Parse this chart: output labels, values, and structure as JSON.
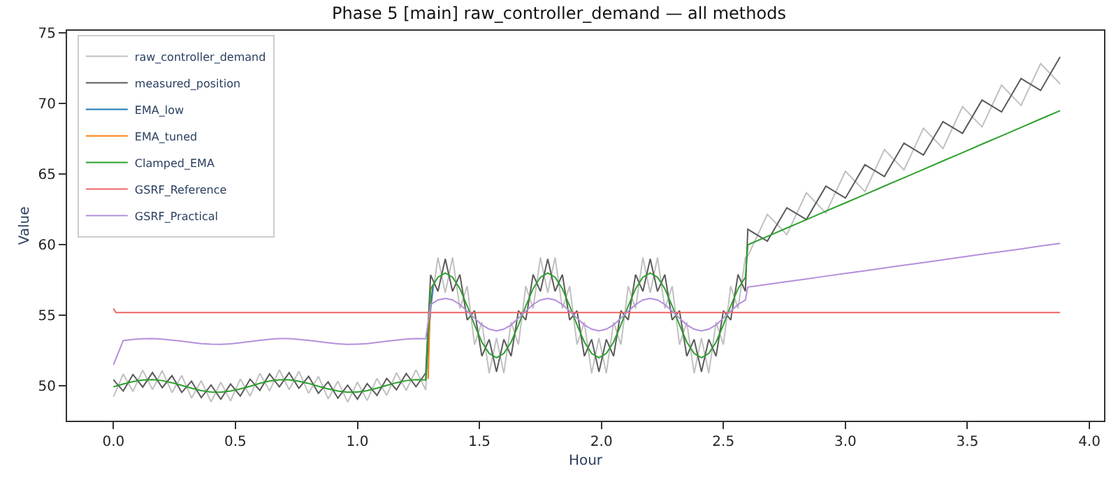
{
  "chart_data": {
    "type": "line",
    "title": "Phase 5 [main] raw_controller_demand — all methods",
    "xlabel": "Hour",
    "ylabel": "Value",
    "x": [
      0,
      0.04,
      0.08,
      0.12,
      0.16,
      0.2,
      0.24,
      0.28,
      0.32,
      0.36,
      0.4,
      0.44,
      0.48,
      0.52,
      0.56,
      0.6,
      0.64,
      0.68,
      0.72,
      0.76,
      0.8,
      0.84,
      0.88,
      0.92,
      0.96,
      1.0,
      1.04,
      1.08,
      1.12,
      1.16,
      1.2,
      1.24,
      1.28,
      1.3,
      1.33,
      1.36,
      1.39,
      1.42,
      1.45,
      1.48,
      1.51,
      1.54,
      1.57,
      1.6,
      1.63,
      1.66,
      1.69,
      1.72,
      1.75,
      1.78,
      1.81,
      1.84,
      1.87,
      1.9,
      1.93,
      1.96,
      1.99,
      2.02,
      2.05,
      2.08,
      2.11,
      2.14,
      2.17,
      2.2,
      2.23,
      2.26,
      2.29,
      2.32,
      2.35,
      2.38,
      2.41,
      2.44,
      2.47,
      2.5,
      2.53,
      2.56,
      2.59,
      2.6,
      2.68,
      2.76,
      2.84,
      2.92,
      3.0,
      3.08,
      3.16,
      3.24,
      3.32,
      3.4,
      3.48,
      3.56,
      3.64,
      3.72,
      3.8,
      3.88
    ],
    "series": [
      {
        "name": "raw_controller_demand",
        "color": "#c0c0c0",
        "values": [
          49.24,
          50.84,
          49.61,
          51.12,
          49.75,
          51.08,
          49.53,
          50.74,
          49.14,
          50.37,
          48.87,
          50.26,
          48.94,
          50.49,
          49.28,
          50.89,
          49.65,
          51.14,
          49.74,
          51.04,
          49.48,
          50.68,
          49.09,
          50.34,
          48.86,
          50.27,
          48.97,
          50.54,
          49.34,
          50.93,
          49.68,
          51.15,
          49.72,
          55.47,
          59.1,
          56.6,
          59.1,
          55.49,
          57.07,
          52.93,
          54.51,
          50.9,
          53.4,
          50.9,
          54.51,
          52.93,
          57.07,
          55.49,
          59.1,
          56.6,
          59.1,
          55.49,
          57.07,
          52.93,
          54.51,
          50.9,
          53.4,
          50.9,
          54.51,
          52.93,
          57.07,
          55.49,
          59.1,
          56.6,
          59.1,
          55.49,
          57.07,
          52.93,
          54.51,
          50.9,
          53.4,
          50.9,
          54.51,
          52.93,
          57.07,
          55.49,
          59.1,
          59.2,
          62.16,
          60.72,
          63.69,
          62.25,
          65.21,
          63.77,
          66.74,
          65.3,
          68.26,
          66.82,
          69.79,
          68.35,
          71.31,
          69.87,
          72.83,
          71.4
        ]
      },
      {
        "name": "measured_position",
        "color": "#5a5a5a",
        "values": [
          50.44,
          49.64,
          50.81,
          49.92,
          50.95,
          49.88,
          50.73,
          49.54,
          50.34,
          49.17,
          50.07,
          49.06,
          50.14,
          49.29,
          50.48,
          49.69,
          50.85,
          49.94,
          50.94,
          49.84,
          50.68,
          49.48,
          50.29,
          49.14,
          50.06,
          49.07,
          50.17,
          49.34,
          50.54,
          49.73,
          50.88,
          49.95,
          50.92,
          57.87,
          56.7,
          59.0,
          56.7,
          57.89,
          54.67,
          55.33,
          52.11,
          53.3,
          51.0,
          53.3,
          52.11,
          55.33,
          54.67,
          57.89,
          56.7,
          59.0,
          56.7,
          57.89,
          54.67,
          55.33,
          52.11,
          53.3,
          51.0,
          53.3,
          52.11,
          55.33,
          54.67,
          57.89,
          56.7,
          59.0,
          56.7,
          57.89,
          54.67,
          55.33,
          52.11,
          53.3,
          51.0,
          53.3,
          52.11,
          55.33,
          54.67,
          57.89,
          56.7,
          61.1,
          60.26,
          62.62,
          61.79,
          64.15,
          63.31,
          65.67,
          64.84,
          67.2,
          66.36,
          68.72,
          67.89,
          70.25,
          69.41,
          71.77,
          70.93,
          73.3
        ]
      },
      {
        "name": "EMA_low",
        "color": "#1f77b4",
        "x": [
          1.28,
          1.3,
          1.31
        ],
        "values": [
          50.42,
          55.5,
          57.2
        ]
      },
      {
        "name": "EMA_tuned",
        "color": "#ff7f0e",
        "x": [
          1.29,
          1.3
        ],
        "values": [
          50.5,
          57.0
        ]
      },
      {
        "name": "Clamped_EMA",
        "color": "#2ca02c",
        "values": [
          49.94,
          50.14,
          50.31,
          50.42,
          50.45,
          50.38,
          50.23,
          50.04,
          49.84,
          49.67,
          49.57,
          49.56,
          49.64,
          49.79,
          49.98,
          50.19,
          50.35,
          50.44,
          50.44,
          50.34,
          50.18,
          49.98,
          49.79,
          49.64,
          49.56,
          49.57,
          49.67,
          49.84,
          50.04,
          50.23,
          50.38,
          50.45,
          50.42,
          56.87,
          57.7,
          58.0,
          57.7,
          56.89,
          55.67,
          54.33,
          53.11,
          52.3,
          52.0,
          52.3,
          53.11,
          54.33,
          55.67,
          56.89,
          57.7,
          58.0,
          57.7,
          56.89,
          55.67,
          54.33,
          53.11,
          52.3,
          52.0,
          52.3,
          53.11,
          54.33,
          55.67,
          56.89,
          57.7,
          58.0,
          57.7,
          56.89,
          55.67,
          54.33,
          53.11,
          52.3,
          52.0,
          52.3,
          53.11,
          54.33,
          55.67,
          56.89,
          57.7,
          60.0,
          60.59,
          61.19,
          61.78,
          62.38,
          62.97,
          63.56,
          64.16,
          64.75,
          65.34,
          65.94,
          66.53,
          67.13,
          67.72,
          68.31,
          68.91,
          69.5
        ]
      },
      {
        "name": "GSRF_Reference",
        "color": "#ee6666",
        "x": [
          0,
          0.01,
          3.88
        ],
        "values": [
          55.5,
          55.2,
          55.2
        ]
      },
      {
        "name": "GSRF_Practical",
        "color": "#b48fdc",
        "values": [
          51.5,
          53.21,
          53.29,
          53.34,
          53.35,
          53.32,
          53.25,
          53.17,
          53.08,
          53.0,
          52.96,
          52.95,
          52.99,
          53.06,
          53.14,
          53.23,
          53.31,
          53.35,
          53.35,
          53.3,
          53.23,
          53.14,
          53.06,
          52.99,
          52.95,
          52.96,
          53.0,
          53.08,
          53.17,
          53.25,
          53.32,
          53.35,
          53.34,
          55.76,
          56.09,
          56.2,
          56.09,
          55.77,
          55.3,
          54.8,
          54.33,
          54.02,
          53.9,
          54.02,
          54.33,
          54.8,
          55.3,
          55.77,
          56.09,
          56.2,
          56.09,
          55.77,
          55.3,
          54.8,
          54.33,
          54.02,
          53.9,
          54.02,
          54.33,
          54.8,
          55.3,
          55.77,
          56.09,
          56.2,
          56.09,
          55.77,
          55.3,
          54.8,
          54.33,
          54.02,
          53.9,
          54.02,
          54.33,
          54.8,
          55.3,
          55.77,
          56.09,
          57.0,
          57.19,
          57.39,
          57.58,
          57.78,
          57.97,
          58.16,
          58.36,
          58.55,
          58.74,
          58.94,
          59.13,
          59.33,
          59.52,
          59.71,
          59.91,
          60.1
        ]
      }
    ],
    "xlim": [
      -0.19,
      4.06
    ],
    "xticks": [
      {
        "value": 0,
        "label": "0.0"
      },
      {
        "value": 0.5,
        "label": "0.5"
      },
      {
        "value": 1,
        "label": "1.0"
      },
      {
        "value": 1.5,
        "label": "1.5"
      },
      {
        "value": 2,
        "label": "2.0"
      },
      {
        "value": 2.5,
        "label": "2.5"
      },
      {
        "value": 3,
        "label": "3.0"
      },
      {
        "value": 3.5,
        "label": "3.5"
      },
      {
        "value": 4,
        "label": "4.0"
      }
    ],
    "ylim": [
      47.54,
      75.16
    ],
    "yticks": [
      50,
      55,
      60,
      65,
      70,
      75
    ],
    "legend": "top left",
    "marker": "none",
    "line_style": "solid"
  }
}
